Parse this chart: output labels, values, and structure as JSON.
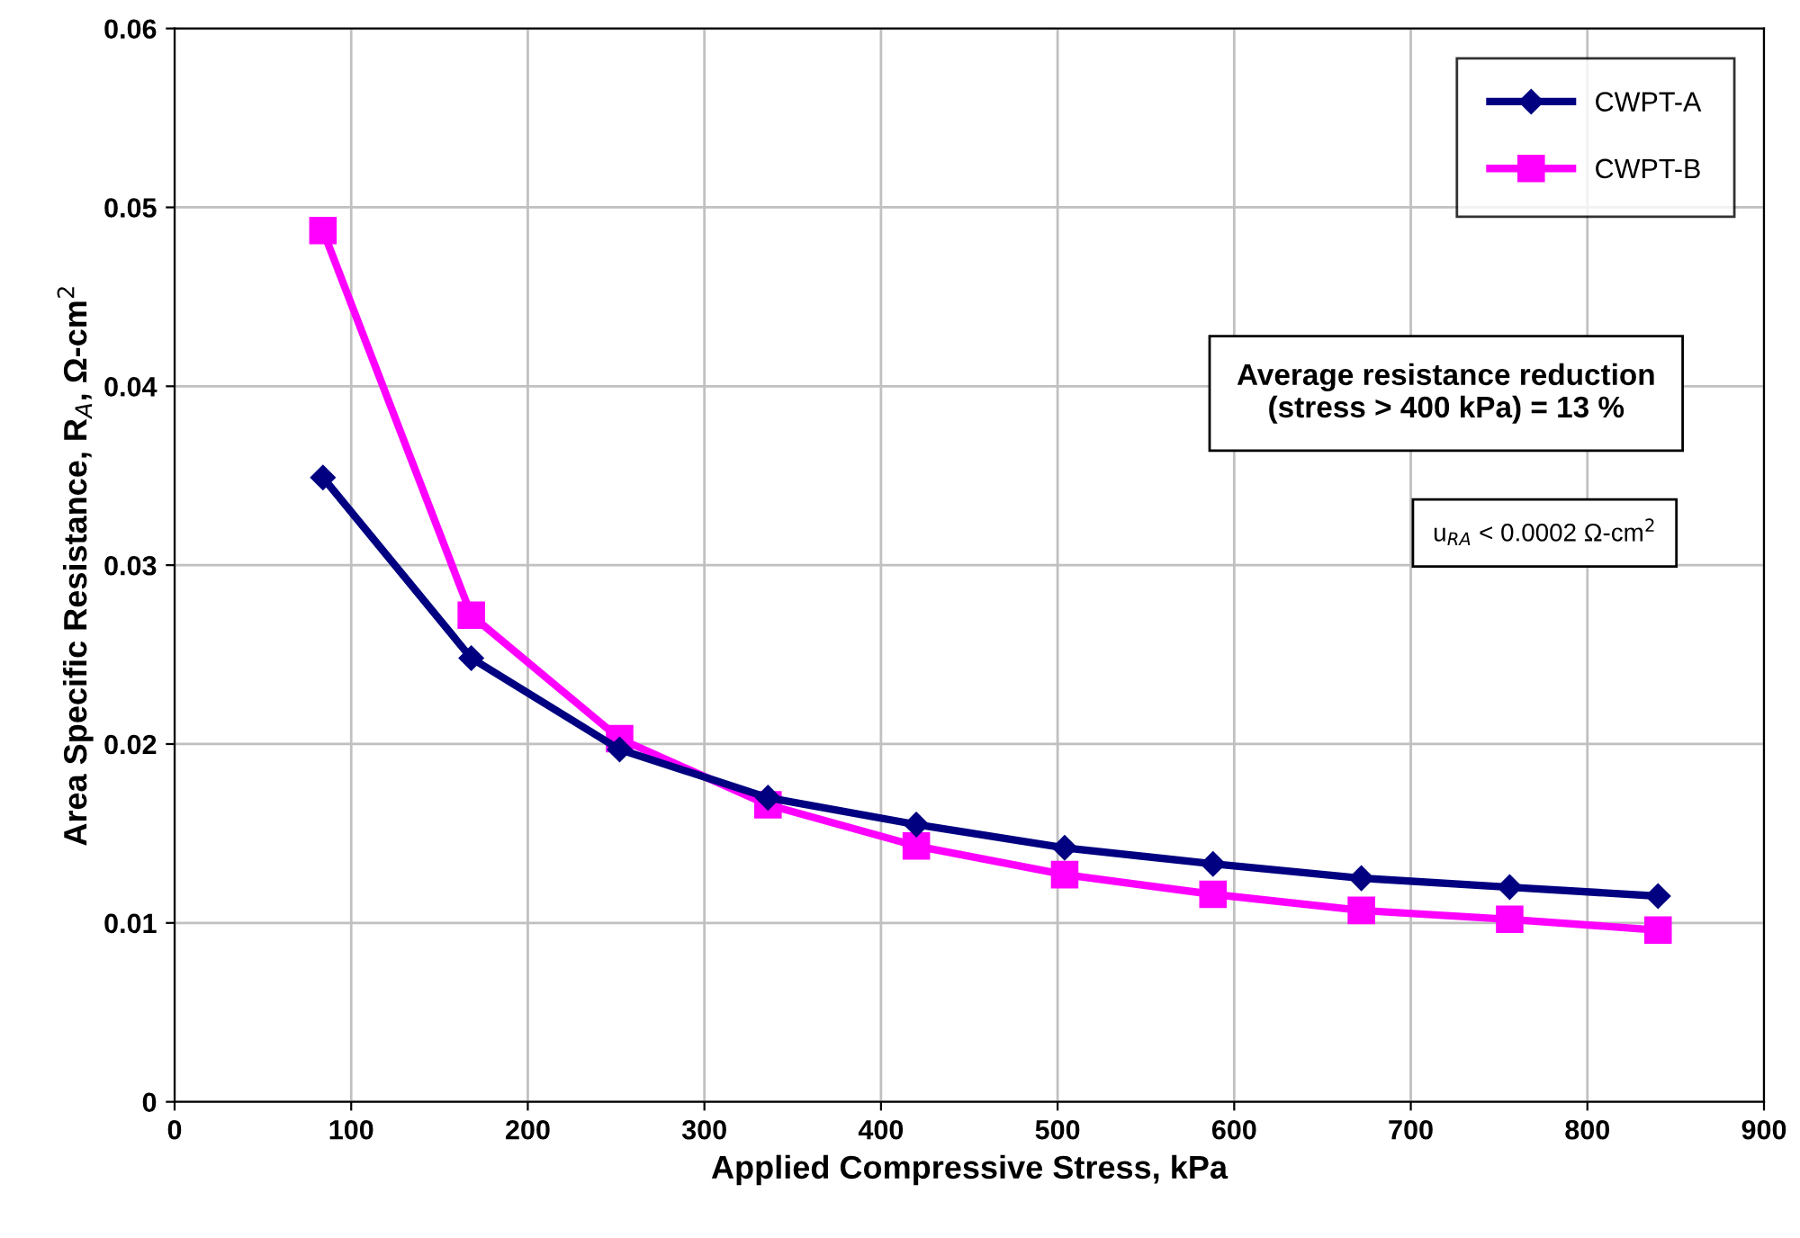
{
  "chart_data": {
    "type": "line",
    "xlabel": "Applied Compressive Stress, kPa",
    "ylabel": "Area Specific Resistance, R$_{A}$, Ω-cm$^{2}$",
    "x": [
      84,
      168,
      252,
      336,
      420,
      504,
      588,
      672,
      756,
      840
    ],
    "series": [
      {
        "name": "CWPT-A",
        "color": "#000080",
        "marker": "diamond",
        "values": [
          0.0349,
          0.0248,
          0.0197,
          0.017,
          0.0155,
          0.0142,
          0.0133,
          0.0125,
          0.012,
          0.0115
        ]
      },
      {
        "name": "CWPT-B",
        "color": "#ff00ff",
        "marker": "square",
        "values": [
          0.0487,
          0.0272,
          0.0203,
          0.0166,
          0.0143,
          0.0127,
          0.0116,
          0.0107,
          0.0102,
          0.0096
        ]
      }
    ],
    "xlim": [
      0,
      900
    ],
    "xticks": [
      0,
      100,
      200,
      300,
      400,
      500,
      600,
      700,
      800,
      900
    ],
    "ylim": [
      0,
      0.06
    ],
    "yticks": [
      {
        "value": 0,
        "label": "0"
      },
      0.01,
      0.02,
      0.03,
      0.04,
      0.05,
      0.06
    ],
    "grid": true,
    "legend": "top right",
    "annotations": [
      "Average resistance reduction\n(stress > 400 kPa) = 13 %",
      "u$_{RA}$ < 0.0002 Ω-cm$^{2}$"
    ]
  }
}
